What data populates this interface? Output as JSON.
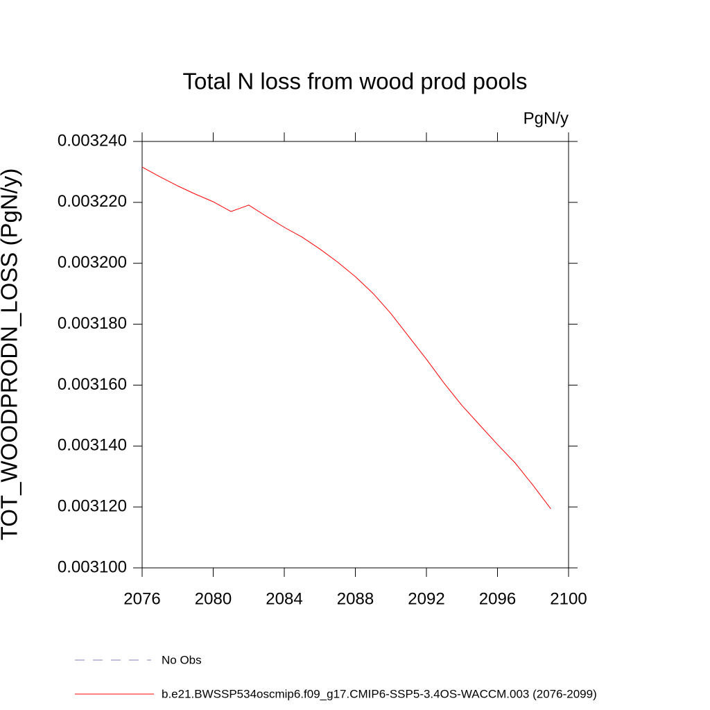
{
  "chart_data": {
    "type": "line",
    "title": "Total N loss from wood prod pools",
    "units": "PgN/y",
    "y_label": "TOT_WOODPRODN_LOSS  (PgN/y)",
    "x": [
      2076,
      2077,
      2078,
      2079,
      2080,
      2081,
      2082,
      2083,
      2084,
      2085,
      2086,
      2087,
      2088,
      2089,
      2090,
      2091,
      2092,
      2093,
      2094,
      2095,
      2096,
      2097,
      2098,
      2099
    ],
    "series": [
      {
        "name": "b.e21.BWSSP534oscmip6.f09_g17.CMIP6-SSP5-3.4OS-WACCM.003 (2076-2099)",
        "color": "#ff0000",
        "values": [
          0.0032316,
          0.0032284,
          0.0032254,
          0.0032227,
          0.0032202,
          0.003217,
          0.0032191,
          0.0032154,
          0.0032118,
          0.0032086,
          0.0032047,
          0.0032004,
          0.0031956,
          0.0031901,
          0.0031835,
          0.003176,
          0.0031685,
          0.0031606,
          0.0031533,
          0.0031469,
          0.0031405,
          0.0031344,
          0.0031271,
          0.0031194
        ]
      }
    ],
    "obs_legend": {
      "name": "No Obs",
      "color": "#8080c0"
    },
    "xlim": [
      2076,
      2100
    ],
    "xticks": [
      2076,
      2080,
      2084,
      2088,
      2092,
      2096,
      2100
    ],
    "ylim": [
      0.0031,
      0.00324
    ],
    "yticks": [
      {
        "value": 0.0031,
        "label": "0.003100"
      },
      {
        "value": 0.00312,
        "label": "0.003120"
      },
      {
        "value": 0.00314,
        "label": "0.003140"
      },
      {
        "value": 0.00316,
        "label": "0.003160"
      },
      {
        "value": 0.00318,
        "label": "0.003180"
      },
      {
        "value": 0.0032,
        "label": "0.003200"
      },
      {
        "value": 0.00322,
        "label": "0.003220"
      },
      {
        "value": 0.00324,
        "label": "0.003240"
      }
    ]
  }
}
